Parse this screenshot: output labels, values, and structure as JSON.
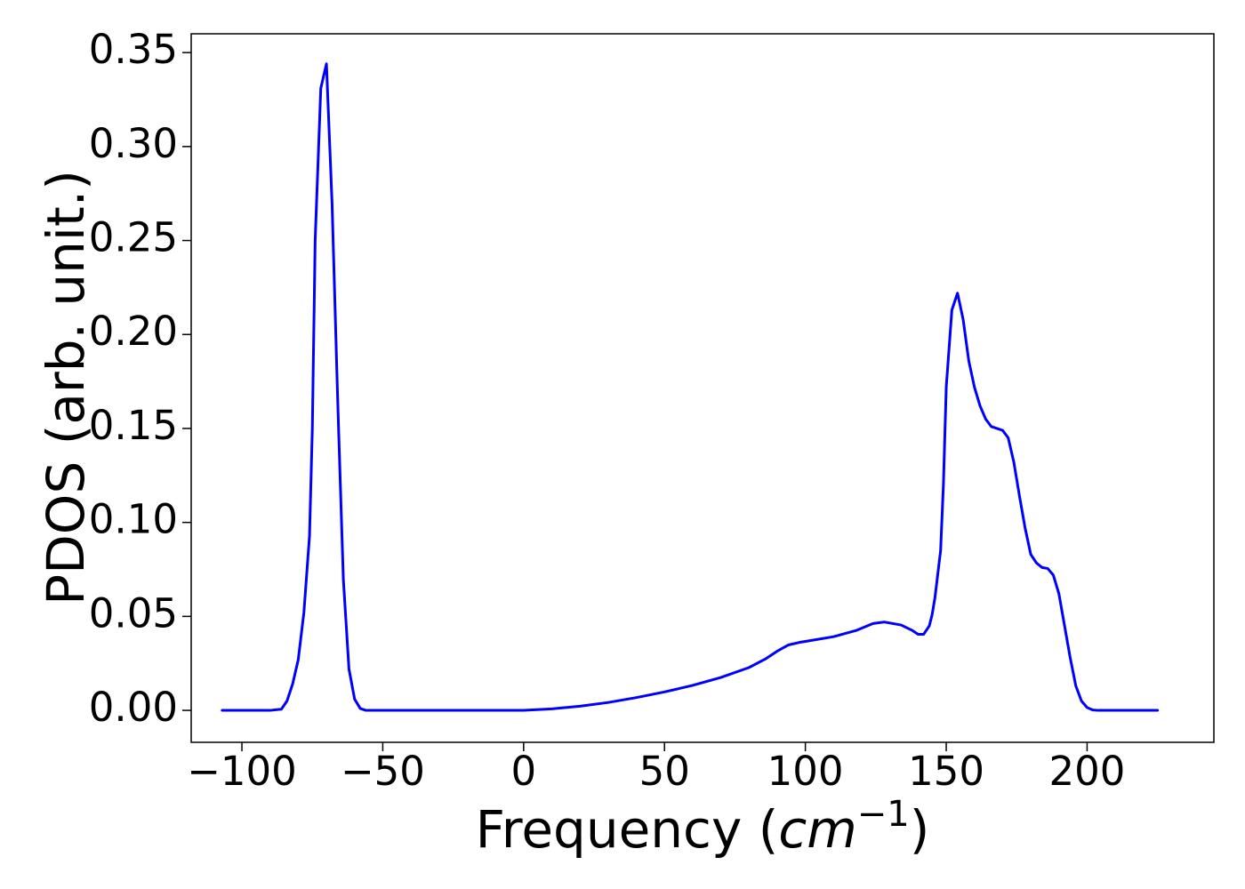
{
  "chart_data": {
    "type": "line",
    "title": "",
    "xlabel": {
      "text": "Frequency (",
      "unit": "cm",
      "superscript": "−1",
      "suffix": ")"
    },
    "ylabel": "PDOS (arb. unit.)",
    "xlim": [
      -118,
      245
    ],
    "ylim": [
      -0.017,
      0.36
    ],
    "xticks": [
      -100,
      -50,
      0,
      50,
      100,
      150,
      200
    ],
    "xtick_labels": [
      "−100",
      "−50",
      "0",
      "50",
      "100",
      "150",
      "200"
    ],
    "yticks": [
      0.0,
      0.05,
      0.1,
      0.15,
      0.2,
      0.25,
      0.3,
      0.35
    ],
    "ytick_labels": [
      "0.00",
      "0.05",
      "0.10",
      "0.15",
      "0.20",
      "0.25",
      "0.30",
      "0.35"
    ],
    "grid": false,
    "series": [
      {
        "color": "#0000ff",
        "x": [
          -107,
          -90,
          -86,
          -84,
          -82,
          -80,
          -78,
          -76,
          -75,
          -74,
          -72,
          -70,
          -68,
          -66,
          -64,
          -62,
          -60,
          -58,
          -56,
          -50,
          0,
          10,
          20,
          30,
          40,
          50,
          60,
          70,
          80,
          86,
          90,
          94,
          98,
          100,
          110,
          118,
          124,
          128,
          134,
          138,
          140,
          142,
          144,
          145,
          146,
          148,
          149,
          150,
          152,
          154,
          156,
          158,
          160,
          162,
          164,
          166,
          168,
          170,
          172,
          174,
          176,
          178,
          180,
          182,
          184,
          186,
          188,
          190,
          192,
          194,
          196,
          198,
          200,
          202,
          204,
          210,
          225
        ],
        "y": [
          0.0,
          0.0,
          0.0006,
          0.005,
          0.014,
          0.027,
          0.052,
          0.093,
          0.15,
          0.25,
          0.331,
          0.344,
          0.27,
          0.165,
          0.07,
          0.022,
          0.006,
          0.001,
          0.0,
          0.0,
          0.0,
          0.0008,
          0.0022,
          0.0042,
          0.0068,
          0.0098,
          0.0133,
          0.0175,
          0.0228,
          0.0275,
          0.0315,
          0.0348,
          0.0362,
          0.0367,
          0.0392,
          0.0425,
          0.0462,
          0.047,
          0.0454,
          0.0425,
          0.0405,
          0.0405,
          0.045,
          0.051,
          0.06,
          0.085,
          0.12,
          0.172,
          0.213,
          0.222,
          0.208,
          0.186,
          0.172,
          0.162,
          0.155,
          0.151,
          0.15,
          0.149,
          0.145,
          0.132,
          0.114,
          0.097,
          0.083,
          0.0785,
          0.076,
          0.0755,
          0.072,
          0.062,
          0.045,
          0.028,
          0.013,
          0.005,
          0.0015,
          0.0002,
          0.0,
          0.0,
          0.0
        ]
      }
    ]
  }
}
